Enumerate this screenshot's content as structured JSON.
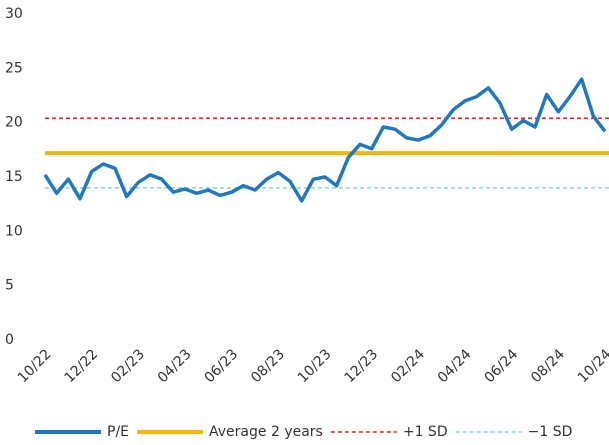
{
  "chart_data": {
    "type": "line",
    "categories": [
      "10/22",
      null,
      null,
      null,
      "12/22",
      null,
      null,
      null,
      "02/23",
      null,
      null,
      null,
      "04/23",
      null,
      null,
      null,
      "06/23",
      null,
      null,
      null,
      "08/23",
      null,
      null,
      null,
      "10/23",
      null,
      null,
      null,
      "12/23",
      null,
      null,
      null,
      "02/24",
      null,
      null,
      null,
      "04/24",
      null,
      null,
      null,
      "06/24",
      null,
      null,
      null,
      "08/24",
      null,
      null,
      null,
      "10/24"
    ],
    "series": [
      {
        "name": "P/E",
        "color": "#1f78c1",
        "values": [
          15.2,
          13.5,
          14.8,
          13.0,
          15.5,
          16.2,
          15.8,
          13.2,
          14.5,
          15.2,
          14.8,
          13.6,
          13.9,
          13.5,
          13.8,
          13.3,
          13.6,
          14.2,
          13.8,
          14.8,
          15.4,
          14.6,
          12.8,
          14.8,
          15.0,
          14.2,
          16.8,
          18.0,
          17.6,
          19.6,
          19.4,
          18.6,
          18.4,
          18.8,
          19.8,
          21.2,
          22.0,
          22.4,
          23.2,
          21.8,
          19.4,
          20.2,
          19.6,
          22.6,
          21.0,
          22.4,
          24.0,
          20.6,
          19.2
        ]
      }
    ],
    "reference_lines": [
      {
        "name": "Average 2 years",
        "color": "#f5b800",
        "style": "solid",
        "value": 17.2
      },
      {
        "name": "+1 SD",
        "color": "#d9262b",
        "style": "dashed",
        "value": 20.4
      },
      {
        "name": "−1 SD",
        "color": "#86d2e3",
        "style": "dashed",
        "value": 14.0
      }
    ],
    "ylim": [
      0,
      30
    ],
    "yticks": [
      0,
      5,
      10,
      15,
      20,
      25,
      30
    ],
    "grid": false,
    "legend": "bottom"
  }
}
